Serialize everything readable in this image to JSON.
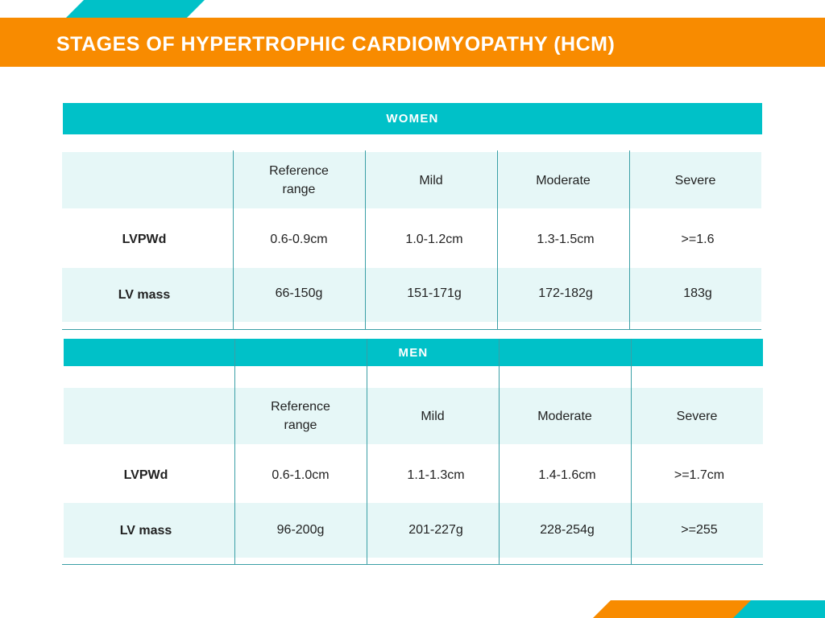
{
  "title": "STAGES OF HYPERTROPHIC CARDIOMYOPATHY (HCM)",
  "colors": {
    "orange": "#f88b00",
    "teal": "#00c1c8",
    "tint": "#e6f7f7"
  },
  "women": {
    "heading": "WOMEN",
    "columns": [
      "",
      "Reference range",
      "Mild",
      "Moderate",
      "Severe"
    ],
    "rows": [
      {
        "label": "LVPWd",
        "values": [
          "0.6-0.9cm",
          "1.0-1.2cm",
          "1.3-1.5cm",
          ">=1.6"
        ]
      },
      {
        "label": "LV mass",
        "values": [
          "66-150g",
          "151-171g",
          "172-182g",
          "183g"
        ]
      }
    ]
  },
  "men": {
    "heading": "MEN",
    "columns": [
      "",
      "Reference range",
      "Mild",
      "Moderate",
      "Severe"
    ],
    "rows": [
      {
        "label": "LVPWd",
        "values": [
          "0.6-1.0cm",
          "1.1-1.3cm",
          "1.4-1.6cm",
          ">=1.7cm"
        ]
      },
      {
        "label": "LV mass",
        "values": [
          "96-200g",
          "201-227g",
          "228-254g",
          ">=255"
        ]
      }
    ]
  }
}
